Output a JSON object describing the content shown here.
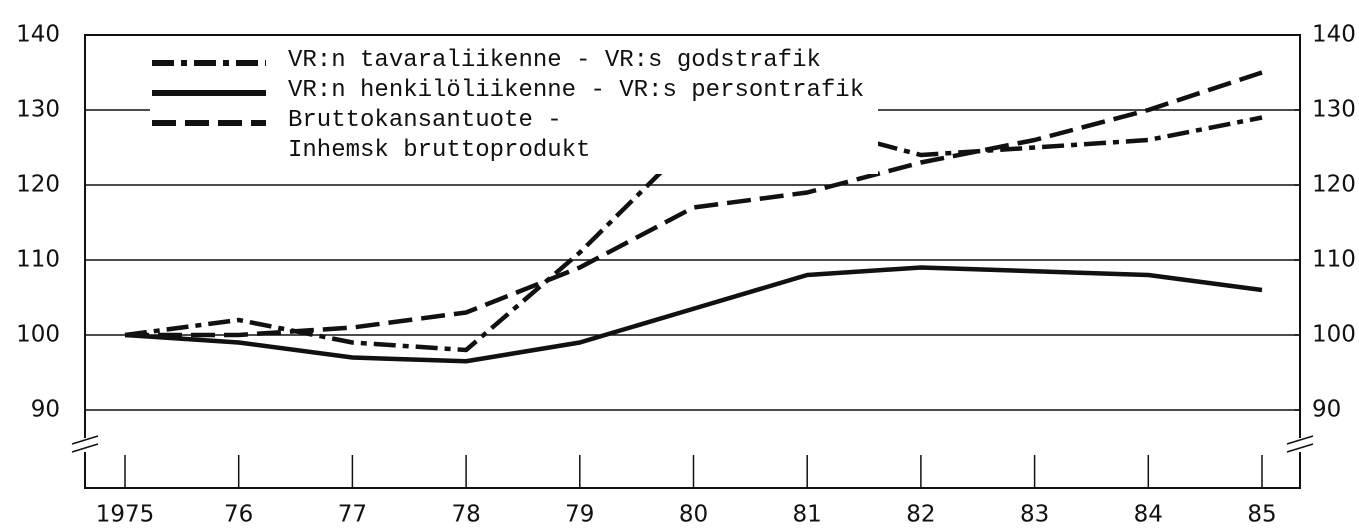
{
  "chart_data": {
    "type": "line",
    "categories": [
      "1975",
      "76",
      "77",
      "78",
      "79",
      "80",
      "81",
      "82",
      "83",
      "84",
      "85"
    ],
    "series": [
      {
        "name": "VR:n tavaraliikenne - VR:s godstrafik",
        "color": "#111111",
        "linestyle": "dashdot",
        "values": [
          100,
          102,
          99,
          98,
          111,
          126,
          128,
          124,
          125,
          126,
          129
        ]
      },
      {
        "name": "VR:n henkilöliikenne - VR:s persontrafik",
        "color": "#111111",
        "linestyle": "solid",
        "values": [
          100,
          99,
          97,
          96.5,
          99,
          103.5,
          108,
          109,
          108.5,
          108,
          106
        ]
      },
      {
        "name": "Bruttokansantuote -\nInhemsk bruttoprodukt",
        "color": "#111111",
        "linestyle": "dashed",
        "values": [
          100,
          100,
          101,
          103,
          109,
          117,
          119,
          123,
          126,
          130,
          135
        ]
      }
    ],
    "ylim": [
      90,
      140
    ],
    "yticks": [
      90,
      100,
      110,
      120,
      130,
      140
    ],
    "y2lim": [
      90,
      140
    ],
    "y2ticks": [
      90,
      100,
      110,
      120,
      130,
      140
    ],
    "grid": true,
    "legend": "upper left"
  }
}
